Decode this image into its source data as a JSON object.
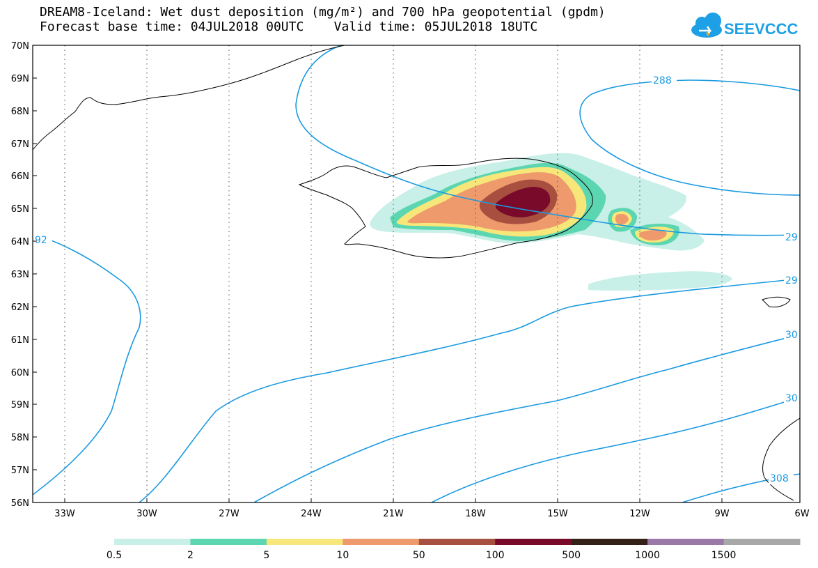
{
  "header": {
    "title_line1": "DREAM8-Iceland: Wet dust deposition (mg/m²) and 700 hPa geopotential (gpdm)",
    "title_line2": "Forecast base time: 04JUL2018 00UTC    Valid time: 05JUL2018 18UTC",
    "logo_text": "SEEVCCC"
  },
  "map": {
    "lat_labels": [
      "70N",
      "69N",
      "68N",
      "67N",
      "66N",
      "65N",
      "64N",
      "63N",
      "62N",
      "61N",
      "60N",
      "59N",
      "58N",
      "57N",
      "56N"
    ],
    "lon_labels": [
      "33W",
      "30W",
      "27W",
      "24W",
      "21W",
      "18W",
      "15W",
      "12W",
      "9W",
      "6W"
    ],
    "contour_labels": [
      "288",
      "29",
      "92",
      "29",
      "30",
      "30",
      "308"
    ],
    "colors": {
      "contour": "#1a9ae0",
      "coast": "#000000",
      "grid": "#555555"
    }
  },
  "legend": {
    "bins": [
      {
        "color": "#c8f0e8"
      },
      {
        "color": "#5cd6b0"
      },
      {
        "color": "#f7e77a"
      },
      {
        "color": "#ee9a6c"
      },
      {
        "color": "#a85040"
      },
      {
        "color": "#7a0a2a"
      },
      {
        "color": "#352018"
      },
      {
        "color": "#9a78a8"
      },
      {
        "color": "#a8a8a8"
      }
    ],
    "labels": [
      "0.5",
      "2",
      "5",
      "10",
      "50",
      "100",
      "500",
      "1000",
      "1500"
    ]
  }
}
